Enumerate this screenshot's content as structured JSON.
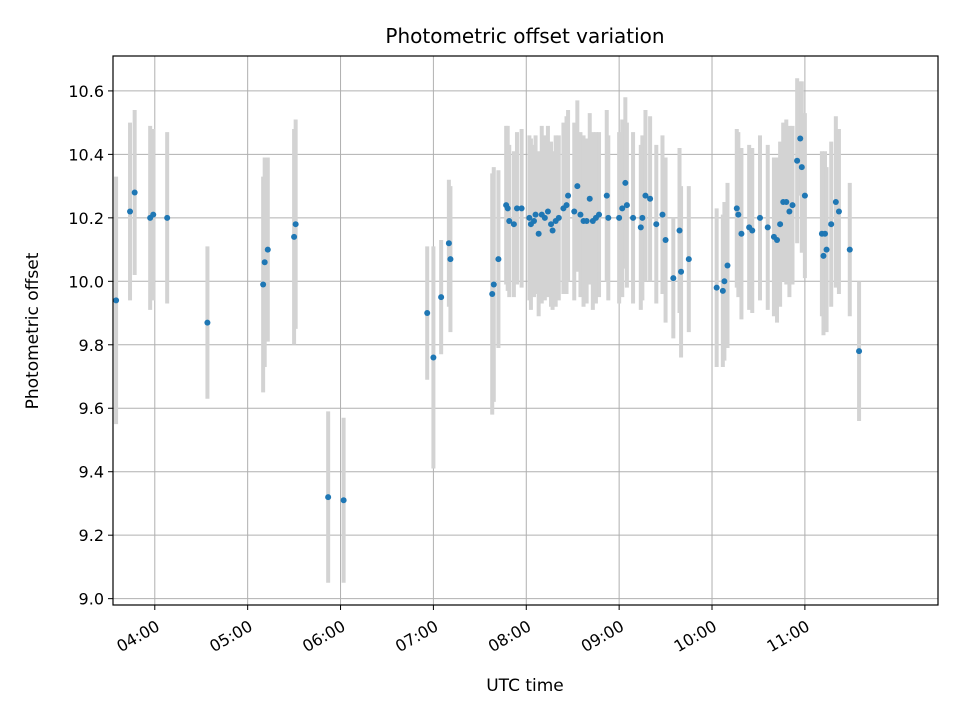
{
  "colors": {
    "point": "#1f77b4",
    "errorbar": "#d3d3d3",
    "grid": "#b0b0b0",
    "axis": "#000000"
  },
  "chart_data": {
    "type": "scatter",
    "title": "Photometric offset variation",
    "xlabel": "UTC time",
    "ylabel": "Photometric offset",
    "x_unit": "UTC time (HH:MM)",
    "xlim": [
      "03:33",
      "12:26"
    ],
    "ylim": [
      8.98,
      10.71
    ],
    "grid": true,
    "x_ticks": [
      "04:00",
      "05:00",
      "06:00",
      "07:00",
      "08:00",
      "09:00",
      "10:00",
      "11:00"
    ],
    "y_ticks": [
      "9.0",
      "9.2",
      "9.4",
      "9.6",
      "9.8",
      "10.0",
      "10.2",
      "10.4",
      "10.6"
    ],
    "points": [
      {
        "x": "03:35",
        "y": 9.94,
        "err": 0.39
      },
      {
        "x": "03:44",
        "y": 10.22,
        "err": 0.28
      },
      {
        "x": "03:47",
        "y": 10.28,
        "err": 0.26
      },
      {
        "x": "03:57",
        "y": 10.2,
        "err": 0.29
      },
      {
        "x": "03:59",
        "y": 10.21,
        "err": 0.27
      },
      {
        "x": "04:08",
        "y": 10.2,
        "err": 0.27
      },
      {
        "x": "04:34",
        "y": 9.87,
        "err": 0.24
      },
      {
        "x": "05:10",
        "y": 9.99,
        "err": 0.34
      },
      {
        "x": "05:11",
        "y": 10.06,
        "err": 0.33
      },
      {
        "x": "05:13",
        "y": 10.1,
        "err": 0.29
      },
      {
        "x": "05:30",
        "y": 10.14,
        "err": 0.34
      },
      {
        "x": "05:31",
        "y": 10.18,
        "err": 0.33
      },
      {
        "x": "05:52",
        "y": 9.32,
        "err": 0.27
      },
      {
        "x": "06:02",
        "y": 9.31,
        "err": 0.26
      },
      {
        "x": "06:56",
        "y": 9.9,
        "err": 0.21
      },
      {
        "x": "07:00",
        "y": 9.76,
        "err": 0.35
      },
      {
        "x": "07:05",
        "y": 9.95,
        "err": 0.18
      },
      {
        "x": "07:10",
        "y": 10.12,
        "err": 0.2
      },
      {
        "x": "07:11",
        "y": 10.07,
        "err": 0.23
      },
      {
        "x": "07:38",
        "y": 9.96,
        "err": 0.38
      },
      {
        "x": "07:39",
        "y": 9.99,
        "err": 0.37
      },
      {
        "x": "07:42",
        "y": 10.07,
        "err": 0.28
      },
      {
        "x": "07:47",
        "y": 10.24,
        "err": 0.25
      },
      {
        "x": "07:48",
        "y": 10.23,
        "err": 0.26
      },
      {
        "x": "07:49",
        "y": 10.19,
        "err": 0.24
      },
      {
        "x": "07:52",
        "y": 10.18,
        "err": 0.23
      },
      {
        "x": "07:54",
        "y": 10.23,
        "err": 0.24
      },
      {
        "x": "07:57",
        "y": 10.23,
        "err": 0.25
      },
      {
        "x": "08:02",
        "y": 10.2,
        "err": 0.26
      },
      {
        "x": "08:03",
        "y": 10.18,
        "err": 0.27
      },
      {
        "x": "08:05",
        "y": 10.19,
        "err": 0.24
      },
      {
        "x": "08:06",
        "y": 10.21,
        "err": 0.25
      },
      {
        "x": "08:08",
        "y": 10.15,
        "err": 0.26
      },
      {
        "x": "08:10",
        "y": 10.21,
        "err": 0.28
      },
      {
        "x": "08:12",
        "y": 10.2,
        "err": 0.26
      },
      {
        "x": "08:14",
        "y": 10.22,
        "err": 0.27
      },
      {
        "x": "08:16",
        "y": 10.18,
        "err": 0.26
      },
      {
        "x": "08:17",
        "y": 10.16,
        "err": 0.25
      },
      {
        "x": "08:19",
        "y": 10.19,
        "err": 0.27
      },
      {
        "x": "08:21",
        "y": 10.2,
        "err": 0.26
      },
      {
        "x": "08:24",
        "y": 10.23,
        "err": 0.27
      },
      {
        "x": "08:26",
        "y": 10.24,
        "err": 0.28
      },
      {
        "x": "08:27",
        "y": 10.27,
        "err": 0.27
      },
      {
        "x": "08:31",
        "y": 10.22,
        "err": 0.28
      },
      {
        "x": "08:33",
        "y": 10.3,
        "err": 0.27
      },
      {
        "x": "08:35",
        "y": 10.21,
        "err": 0.26
      },
      {
        "x": "08:37",
        "y": 10.19,
        "err": 0.27
      },
      {
        "x": "08:39",
        "y": 10.19,
        "err": 0.26
      },
      {
        "x": "08:41",
        "y": 10.26,
        "err": 0.27
      },
      {
        "x": "08:43",
        "y": 10.19,
        "err": 0.28
      },
      {
        "x": "08:45",
        "y": 10.2,
        "err": 0.27
      },
      {
        "x": "08:47",
        "y": 10.21,
        "err": 0.26
      },
      {
        "x": "08:52",
        "y": 10.27,
        "err": 0.27
      },
      {
        "x": "08:53",
        "y": 10.2,
        "err": 0.26
      },
      {
        "x": "09:00",
        "y": 10.2,
        "err": 0.27
      },
      {
        "x": "09:02",
        "y": 10.23,
        "err": 0.28
      },
      {
        "x": "09:04",
        "y": 10.31,
        "err": 0.27
      },
      {
        "x": "09:05",
        "y": 10.24,
        "err": 0.26
      },
      {
        "x": "09:09",
        "y": 10.2,
        "err": 0.27
      },
      {
        "x": "09:14",
        "y": 10.17,
        "err": 0.26
      },
      {
        "x": "09:15",
        "y": 10.2,
        "err": 0.26
      },
      {
        "x": "09:17",
        "y": 10.27,
        "err": 0.27
      },
      {
        "x": "09:20",
        "y": 10.26,
        "err": 0.26
      },
      {
        "x": "09:24",
        "y": 10.18,
        "err": 0.25
      },
      {
        "x": "09:28",
        "y": 10.21,
        "err": 0.25
      },
      {
        "x": "09:30",
        "y": 10.13,
        "err": 0.26
      },
      {
        "x": "09:35",
        "y": 10.01,
        "err": 0.19
      },
      {
        "x": "09:39",
        "y": 10.16,
        "err": 0.26
      },
      {
        "x": "09:40",
        "y": 10.03,
        "err": 0.27
      },
      {
        "x": "09:45",
        "y": 10.07,
        "err": 0.23
      },
      {
        "x": "10:03",
        "y": 9.98,
        "err": 0.25
      },
      {
        "x": "10:07",
        "y": 9.97,
        "err": 0.24
      },
      {
        "x": "10:08",
        "y": 10.0,
        "err": 0.25
      },
      {
        "x": "10:10",
        "y": 10.05,
        "err": 0.26
      },
      {
        "x": "10:16",
        "y": 10.23,
        "err": 0.25
      },
      {
        "x": "10:17",
        "y": 10.21,
        "err": 0.26
      },
      {
        "x": "10:19",
        "y": 10.15,
        "err": 0.27
      },
      {
        "x": "10:24",
        "y": 10.17,
        "err": 0.26
      },
      {
        "x": "10:26",
        "y": 10.16,
        "err": 0.26
      },
      {
        "x": "10:31",
        "y": 10.2,
        "err": 0.26
      },
      {
        "x": "10:36",
        "y": 10.17,
        "err": 0.26
      },
      {
        "x": "10:40",
        "y": 10.14,
        "err": 0.25
      },
      {
        "x": "10:42",
        "y": 10.13,
        "err": 0.26
      },
      {
        "x": "10:44",
        "y": 10.18,
        "err": 0.26
      },
      {
        "x": "10:46",
        "y": 10.25,
        "err": 0.25
      },
      {
        "x": "10:48",
        "y": 10.25,
        "err": 0.26
      },
      {
        "x": "10:50",
        "y": 10.22,
        "err": 0.27
      },
      {
        "x": "10:52",
        "y": 10.24,
        "err": 0.25
      },
      {
        "x": "10:55",
        "y": 10.38,
        "err": 0.26
      },
      {
        "x": "10:57",
        "y": 10.45,
        "err": 0.18
      },
      {
        "x": "10:58",
        "y": 10.36,
        "err": 0.27
      },
      {
        "x": "11:00",
        "y": 10.27,
        "err": 0.26
      },
      {
        "x": "11:11",
        "y": 10.15,
        "err": 0.26
      },
      {
        "x": "11:12",
        "y": 10.08,
        "err": 0.25
      },
      {
        "x": "11:13",
        "y": 10.15,
        "err": 0.26
      },
      {
        "x": "11:14",
        "y": 10.1,
        "err": 0.26
      },
      {
        "x": "11:17",
        "y": 10.18,
        "err": 0.26
      },
      {
        "x": "11:20",
        "y": 10.25,
        "err": 0.27
      },
      {
        "x": "11:22",
        "y": 10.22,
        "err": 0.26
      },
      {
        "x": "11:29",
        "y": 10.1,
        "err": 0.21
      },
      {
        "x": "11:35",
        "y": 9.78,
        "err": 0.22
      }
    ]
  }
}
